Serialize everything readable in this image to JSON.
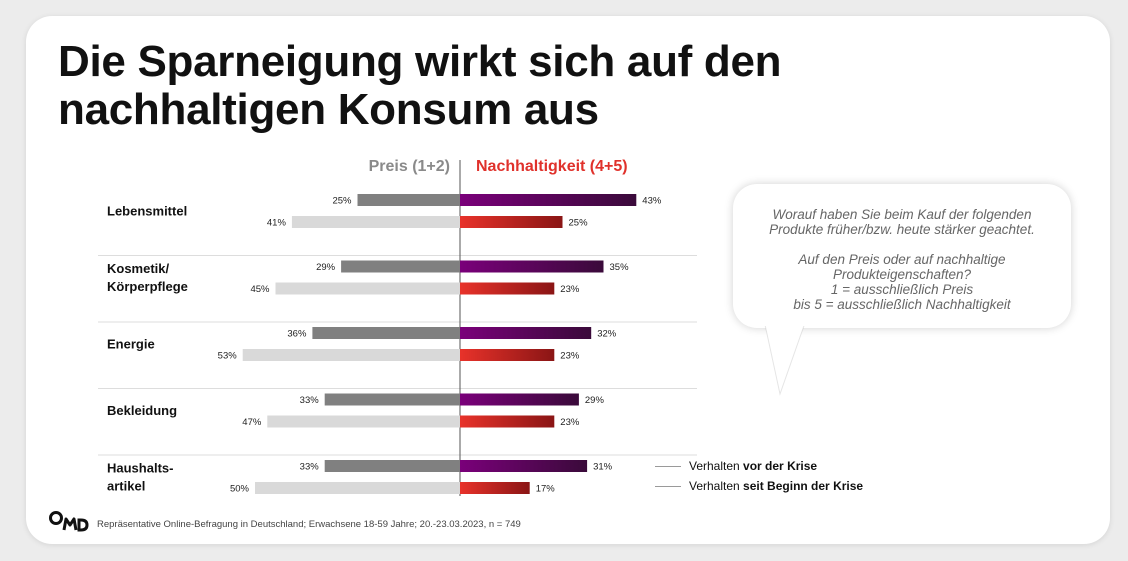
{
  "title_lines": [
    "Die Sparneigung wirkt sich auf den",
    "nachhaltigen Konsum aus"
  ],
  "colors": {
    "preis_vor": "#808080",
    "preis_seit": "#d9d9d9",
    "nach_vor_gradient": [
      "#7a007a",
      "#3a0a3a"
    ],
    "nach_seit_gradient": [
      "#e8322a",
      "#8a1515"
    ],
    "nachhaltigkeit_header": "#e0312b",
    "preis_header": "#8a8a8a"
  },
  "chart_data": {
    "type": "bar",
    "orientation": "diverging-horizontal",
    "headers": {
      "left": "Preis (1+2)",
      "right": "Nachhaltigkeit (4+5)"
    },
    "categories": [
      {
        "lines": [
          "Lebensmittel"
        ]
      },
      {
        "lines": [
          "Kosmetik/",
          "Körperpflege"
        ]
      },
      {
        "lines": [
          "Energie"
        ]
      },
      {
        "lines": [
          "Bekleidung"
        ]
      },
      {
        "lines": [
          "Haushalts-",
          "artikel"
        ]
      }
    ],
    "series": [
      {
        "name": "Preis – vor der Krise",
        "side": "left",
        "values": [
          25,
          29,
          36,
          33,
          33
        ]
      },
      {
        "name": "Preis – seit Beginn der Krise",
        "side": "left",
        "values": [
          41,
          45,
          53,
          47,
          50
        ]
      },
      {
        "name": "Nachhaltigkeit – vor der Krise",
        "side": "right",
        "values": [
          43,
          35,
          32,
          29,
          31
        ]
      },
      {
        "name": "Nachhaltigkeit – seit Beginn der Krise",
        "side": "right",
        "values": [
          25,
          23,
          23,
          23,
          17
        ]
      }
    ],
    "value_suffix": "%",
    "legend": [
      {
        "prefix": "Verhalten ",
        "bold": "vor der Krise"
      },
      {
        "prefix": "Verhalten ",
        "bold": "seit Beginn der Krise"
      }
    ],
    "legend_position": "bottom-right"
  },
  "bubble_lines": [
    "Worauf haben Sie beim Kauf der folgenden",
    "Produkte früher/bzw. heute stärker geachtet.",
    " ",
    "Auf den Preis oder auf nachhaltige",
    "Produkteigenschaften?",
    "1 = ausschließlich Preis",
    "bis 5 = ausschließlich Nachhaltigkeit"
  ],
  "footnote": "Repräsentative Online-Befragung in Deutschland; Erwachsene 18-59 Jahre; 20.-23.03.2023, n = 749",
  "logo_text": "OMD"
}
